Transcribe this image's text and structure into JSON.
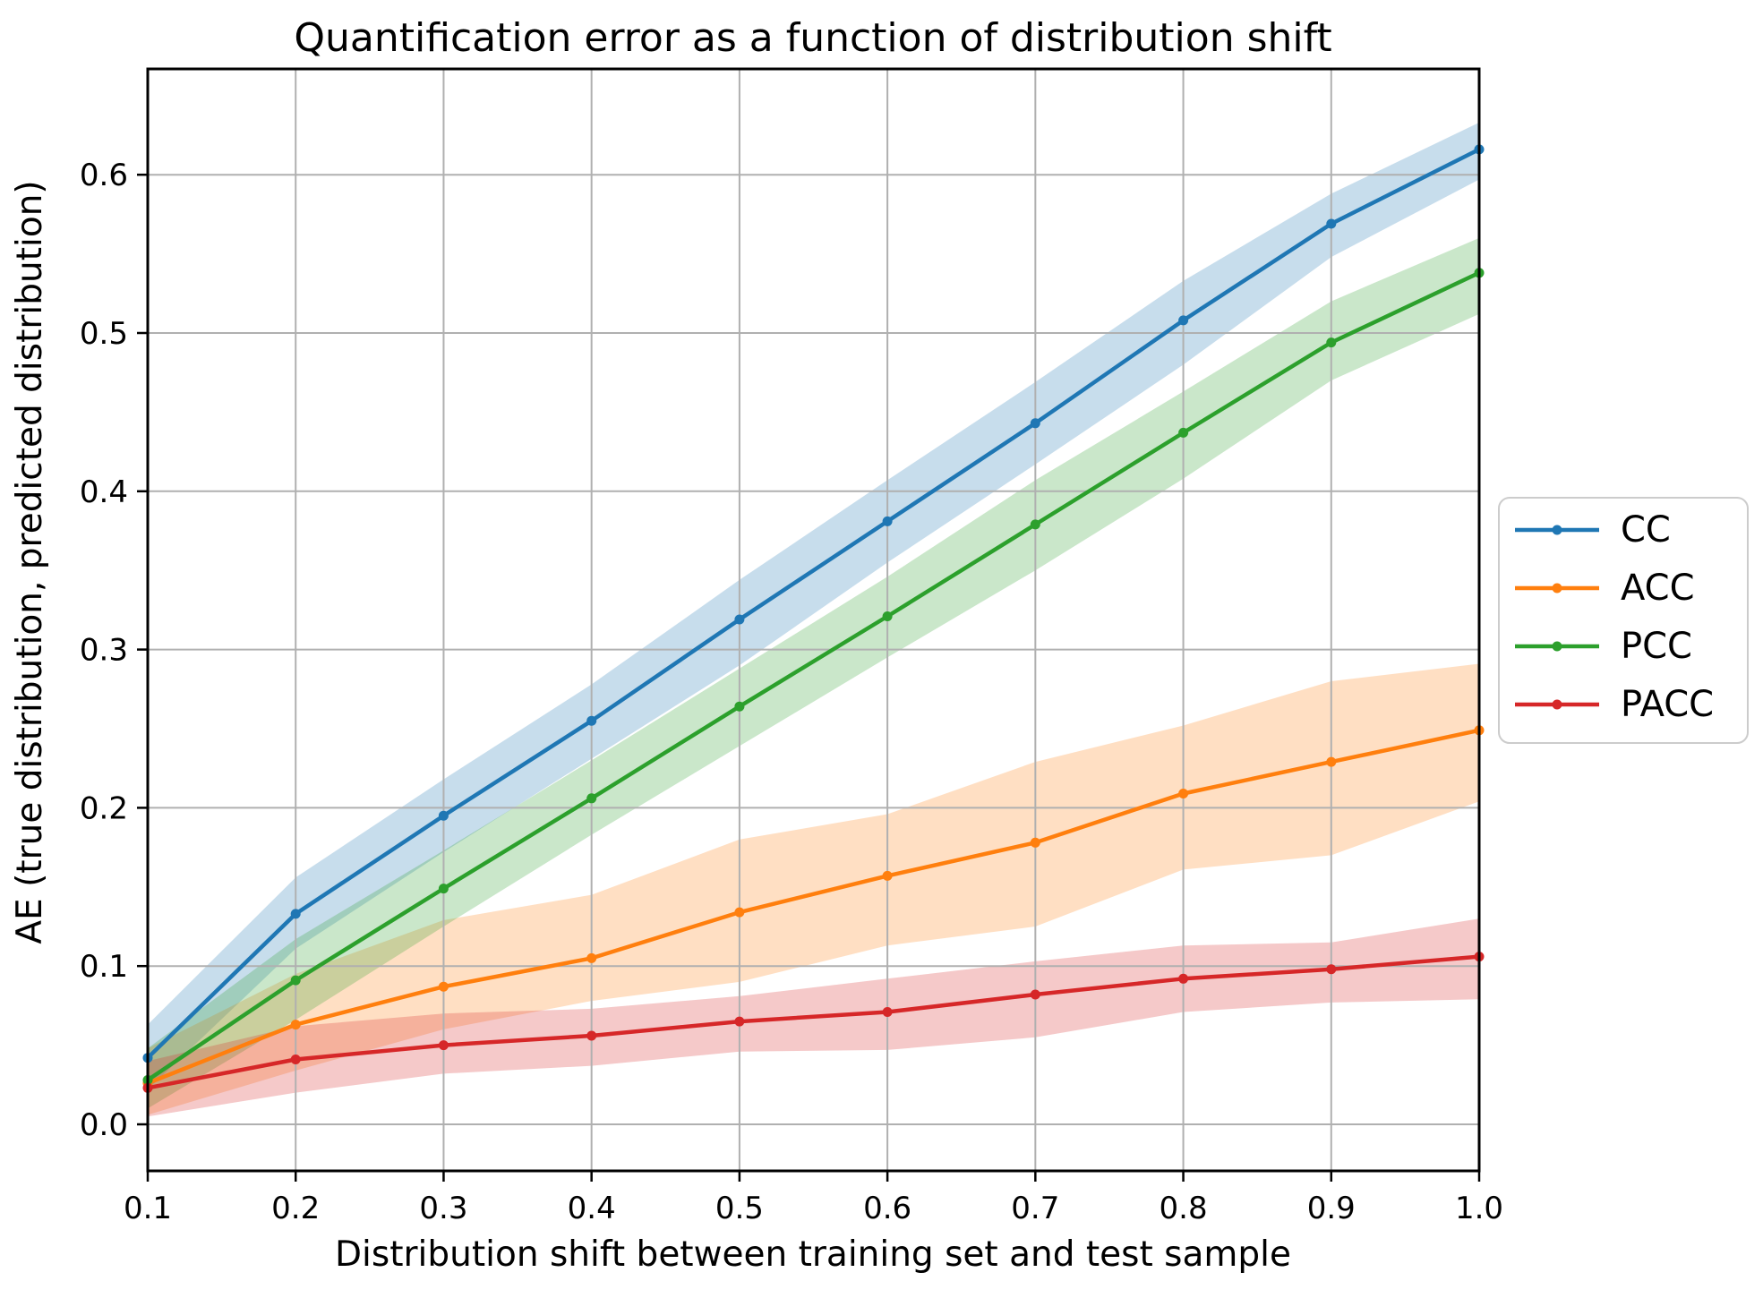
{
  "figure": {
    "title": "Quantification error as a function of distribution shift",
    "xlabel": "Distribution shift between training set and test sample",
    "ylabel": "AE (true distribution, predicted distribution)"
  },
  "chart_data": {
    "type": "line",
    "title": "Quantification error as a function of distribution shift",
    "xlabel": "Distribution shift between training set and test sample",
    "ylabel": "AE (true distribution, predicted distribution)",
    "x": [
      0.1,
      0.2,
      0.3,
      0.4,
      0.5,
      0.6,
      0.7,
      0.8,
      0.9,
      1.0
    ],
    "x_tick_labels": [
      "0.1",
      "0.2",
      "0.3",
      "0.4",
      "0.5",
      "0.6",
      "0.7",
      "0.8",
      "0.9",
      "1.0"
    ],
    "y_ticks": [
      0.0,
      0.1,
      0.2,
      0.3,
      0.4,
      0.5,
      0.6
    ],
    "y_tick_labels": [
      "0.0",
      "0.1",
      "0.2",
      "0.3",
      "0.4",
      "0.5",
      "0.6"
    ],
    "xlim": [
      0.1,
      1.0
    ],
    "ylim": [
      -0.029,
      0.667
    ],
    "grid": true,
    "grid_color": "#b0b0b0",
    "background_color": "#ffffff",
    "marker": "circle",
    "band_opacity": 0.25,
    "legend": {
      "position": "outside-right",
      "border_color": "#cccccc",
      "entries": [
        "CC",
        "ACC",
        "PCC",
        "PACC"
      ]
    },
    "series": [
      {
        "name": "CC",
        "color": "#1f77b4",
        "values": [
          0.042,
          0.133,
          0.195,
          0.255,
          0.319,
          0.381,
          0.443,
          0.508,
          0.569,
          0.616
        ],
        "band_lower": [
          0.022,
          0.111,
          0.172,
          0.231,
          0.29,
          0.355,
          0.417,
          0.48,
          0.548,
          0.597
        ],
        "band_upper": [
          0.063,
          0.156,
          0.218,
          0.278,
          0.344,
          0.407,
          0.469,
          0.533,
          0.588,
          0.633
        ]
      },
      {
        "name": "ACC",
        "color": "#ff7f0e",
        "values": [
          0.026,
          0.063,
          0.087,
          0.105,
          0.134,
          0.157,
          0.178,
          0.209,
          0.229,
          0.249
        ],
        "band_lower": [
          0.006,
          0.034,
          0.06,
          0.078,
          0.09,
          0.113,
          0.125,
          0.161,
          0.17,
          0.204
        ],
        "band_upper": [
          0.048,
          0.095,
          0.129,
          0.145,
          0.18,
          0.196,
          0.229,
          0.252,
          0.28,
          0.291
        ]
      },
      {
        "name": "PCC",
        "color": "#2ca02c",
        "values": [
          0.028,
          0.091,
          0.149,
          0.206,
          0.264,
          0.321,
          0.379,
          0.437,
          0.494,
          0.538
        ],
        "band_lower": [
          0.01,
          0.066,
          0.125,
          0.183,
          0.239,
          0.295,
          0.35,
          0.408,
          0.47,
          0.512
        ],
        "band_upper": [
          0.048,
          0.117,
          0.173,
          0.23,
          0.288,
          0.346,
          0.407,
          0.463,
          0.52,
          0.56
        ]
      },
      {
        "name": "PACC",
        "color": "#d62728",
        "values": [
          0.023,
          0.041,
          0.05,
          0.056,
          0.065,
          0.071,
          0.082,
          0.092,
          0.098,
          0.106
        ],
        "band_lower": [
          0.005,
          0.02,
          0.032,
          0.037,
          0.046,
          0.047,
          0.055,
          0.071,
          0.077,
          0.079
        ],
        "band_upper": [
          0.04,
          0.062,
          0.07,
          0.073,
          0.081,
          0.092,
          0.103,
          0.113,
          0.115,
          0.13
        ]
      }
    ]
  }
}
